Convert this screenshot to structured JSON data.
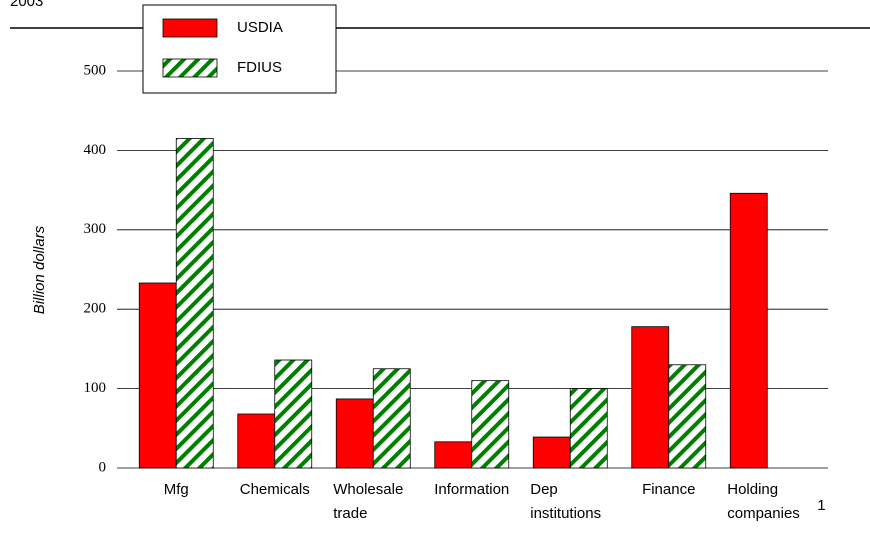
{
  "chart_data": {
    "type": "bar",
    "title": "2003",
    "y_label": "Billion dollars",
    "categories": [
      "Mfg",
      "Chemicals",
      "Wholesale trade",
      "Information",
      "Dep institutions",
      "Finance",
      "Holding companies"
    ],
    "footnote_marker": "1",
    "series": [
      {
        "name": "USDIA",
        "color": "#ff0000",
        "values": [
          233,
          68,
          87,
          33,
          39,
          178,
          346
        ]
      },
      {
        "name": "FDIUS",
        "color": "#008000",
        "pattern": "hatch",
        "values": [
          415,
          136,
          125,
          110,
          100,
          130,
          null
        ]
      }
    ],
    "ylim": [
      0,
      500
    ],
    "yticks": [
      0,
      100,
      200,
      300,
      400,
      500
    ],
    "grid": true,
    "legend": "top-left"
  }
}
